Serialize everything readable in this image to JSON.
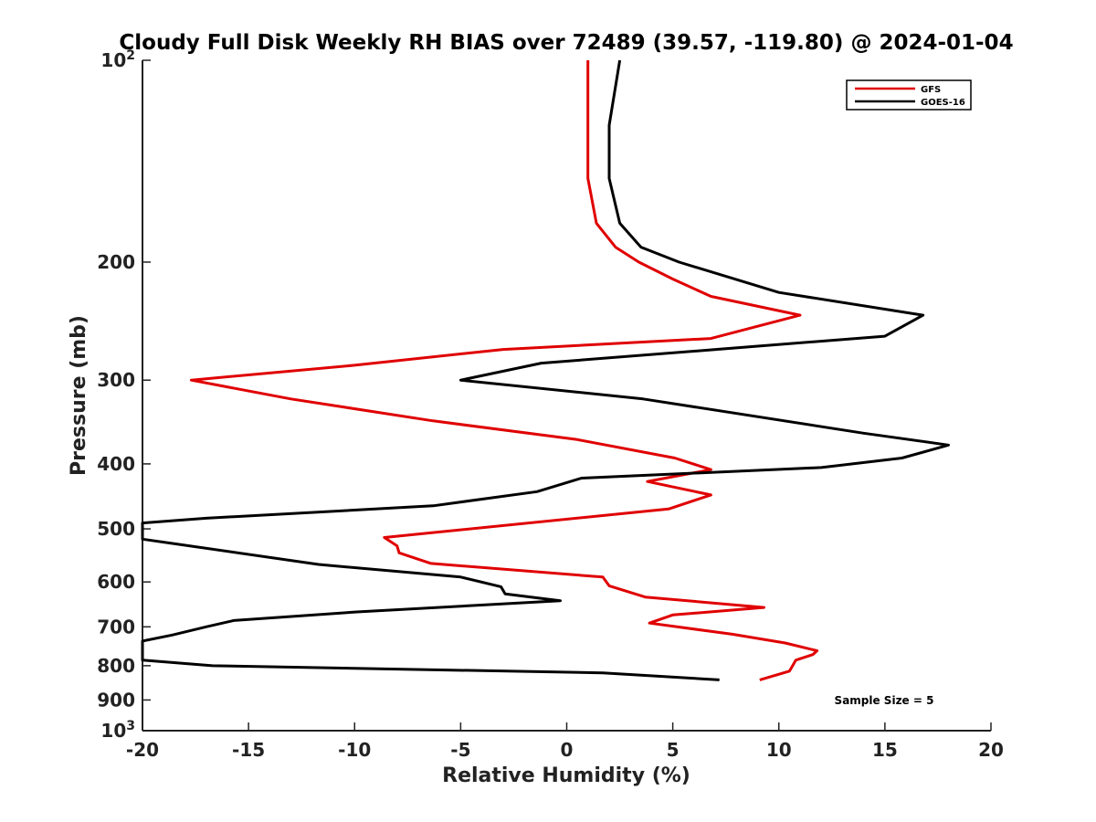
{
  "chart_data": {
    "type": "line",
    "title": "Cloudy Full Disk Weekly RH BIAS over 72489 (39.57, -119.80) @ 2024-01-04",
    "xlabel": "Relative Humidity (%)",
    "ylabel": "Pressure (mb)",
    "xlim": [
      -20,
      20
    ],
    "ylim": [
      100,
      1000
    ],
    "y_scale": "log",
    "y_reversed": true,
    "x_ticks": [
      -20,
      -15,
      -10,
      -5,
      0,
      5,
      10,
      15,
      20
    ],
    "x_tick_labels": [
      "-20",
      "-15",
      "-10",
      "-5",
      "0",
      "5",
      "10",
      "15",
      "20"
    ],
    "y_ticks": [
      {
        "value": 100,
        "label": "10",
        "sup": "2"
      },
      {
        "value": 200,
        "label": "200",
        "sup": ""
      },
      {
        "value": 300,
        "label": "300",
        "sup": ""
      },
      {
        "value": 400,
        "label": "400",
        "sup": ""
      },
      {
        "value": 500,
        "label": "500",
        "sup": ""
      },
      {
        "value": 600,
        "label": "600",
        "sup": ""
      },
      {
        "value": 700,
        "label": "700",
        "sup": ""
      },
      {
        "value": 800,
        "label": "800",
        "sup": ""
      },
      {
        "value": 900,
        "label": "900",
        "sup": ""
      },
      {
        "value": 1000,
        "label": "10",
        "sup": "3"
      }
    ],
    "grid": false,
    "legend_position": "top-right",
    "annotation": "Sample Size = 5",
    "series": [
      {
        "name": "GFS",
        "color": "#e00000",
        "points": [
          [
            1.0,
            100
          ],
          [
            1.0,
            125
          ],
          [
            1.0,
            150
          ],
          [
            1.4,
            175
          ],
          [
            2.3,
            190
          ],
          [
            3.4,
            200
          ],
          [
            5.0,
            212
          ],
          [
            6.8,
            225
          ],
          [
            11.0,
            240
          ],
          [
            6.8,
            260
          ],
          [
            -3.0,
            270
          ],
          [
            -10.0,
            285
          ],
          [
            -17.7,
            300
          ],
          [
            -13.0,
            320
          ],
          [
            -6.3,
            345
          ],
          [
            0.5,
            368
          ],
          [
            5.1,
            392
          ],
          [
            6.8,
            408
          ],
          [
            3.8,
            425
          ],
          [
            6.8,
            445
          ],
          [
            4.8,
            467
          ],
          [
            -8.6,
            515
          ],
          [
            -8.0,
            530
          ],
          [
            -7.9,
            543
          ],
          [
            -6.4,
            563
          ],
          [
            1.7,
            590
          ],
          [
            2.0,
            608
          ],
          [
            3.7,
            632
          ],
          [
            9.3,
            655
          ],
          [
            5.0,
            672
          ],
          [
            3.9,
            691
          ],
          [
            7.8,
            718
          ],
          [
            10.3,
            740
          ],
          [
            11.8,
            760
          ],
          [
            11.6,
            770
          ],
          [
            10.8,
            785
          ],
          [
            10.7,
            795
          ],
          [
            10.5,
            815
          ],
          [
            9.1,
            840
          ]
        ]
      },
      {
        "name": "GOES-16",
        "color": "#000000",
        "points": [
          [
            2.5,
            100
          ],
          [
            2.0,
            125
          ],
          [
            2.0,
            150
          ],
          [
            2.5,
            175
          ],
          [
            3.5,
            190
          ],
          [
            5.3,
            200
          ],
          [
            10.0,
            222
          ],
          [
            16.8,
            240
          ],
          [
            15.0,
            258
          ],
          [
            -1.2,
            283
          ],
          [
            -5.0,
            300
          ],
          [
            3.6,
            320
          ],
          [
            14.0,
            360
          ],
          [
            18.0,
            375
          ],
          [
            15.8,
            392
          ],
          [
            12.0,
            405
          ],
          [
            0.7,
            420
          ],
          [
            -1.4,
            440
          ],
          [
            -6.3,
            462
          ],
          [
            -17.0,
            482
          ],
          [
            -20.2,
            490
          ],
          [
            -20.2,
            518
          ],
          [
            -18.7,
            525
          ],
          [
            -11.7,
            565
          ],
          [
            -5.0,
            590
          ],
          [
            -3.1,
            610
          ],
          [
            -2.9,
            625
          ],
          [
            -0.3,
            640
          ],
          [
            -9.9,
            665
          ],
          [
            -15.7,
            685
          ],
          [
            -17.0,
            700
          ],
          [
            -18.6,
            720
          ],
          [
            -20.2,
            735
          ],
          [
            -20.2,
            785
          ],
          [
            -16.7,
            800
          ],
          [
            1.7,
            820
          ],
          [
            7.2,
            840
          ]
        ]
      }
    ]
  }
}
